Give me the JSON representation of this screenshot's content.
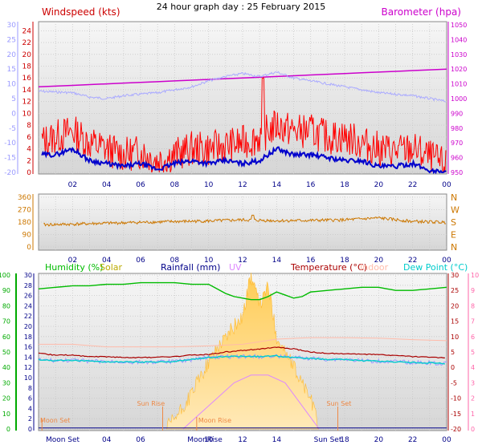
{
  "title": "24 hour graph day : 25 February 2015",
  "colors": {
    "wind_speed": "#cc0000",
    "wind_gust": "#ff0000",
    "wind_avg": "#0000cc",
    "barometer": "#cc00cc",
    "temperature": "#aaaaff",
    "direction": "#cc7700",
    "humidity": "#00bb00",
    "solar": "#bbaa00",
    "rainfall": "#000088",
    "uv": "#dd88ff",
    "temp_label": "#aa0000",
    "indoor": "#ffbbaa",
    "dew_point": "#00cccc",
    "pink_axis": "#ff66aa",
    "astro": "#ee8844",
    "hum_axis": "#00aa00"
  },
  "chart_data": [
    {
      "type": "line",
      "panel": "wind",
      "left_title": "Windspeed (kts)",
      "right_title": "Barometer (hpa)",
      "x_ticks": [
        "02",
        "04",
        "06",
        "08",
        "10",
        "12",
        "14",
        "16",
        "18",
        "20",
        "22",
        "00"
      ],
      "y_left_ticks": [
        "0",
        "2",
        "4",
        "6",
        "8",
        "10",
        "12",
        "14",
        "16",
        "18",
        "20",
        "22",
        "24"
      ],
      "y_far_left_ticks": [
        "-20",
        "-15",
        "-10",
        "-5",
        "0",
        "5",
        "10",
        "15",
        "20",
        "25",
        "30"
      ],
      "y_right_ticks": [
        "950",
        "960",
        "970",
        "980",
        "990",
        "1000",
        "1010",
        "1020",
        "1030",
        "1040",
        "1050"
      ],
      "ylim_left": [
        0,
        25
      ],
      "ylim_far_left": [
        -20,
        30
      ],
      "ylim_right": [
        950,
        1050
      ],
      "series": [
        {
          "x": [
            0,
            1,
            2,
            3,
            4,
            5,
            6,
            7,
            8,
            9,
            10,
            11,
            12,
            13,
            14,
            15,
            16,
            17,
            18,
            19,
            20,
            21,
            22,
            23,
            24
          ],
          "values": [
            1008,
            1008.5,
            1009,
            1009.5,
            1010,
            1010.5,
            1011,
            1011.5,
            1012,
            1012.5,
            1013,
            1013.5,
            1014,
            1014.5,
            1015,
            1015.5,
            1016,
            1016.5,
            1017,
            1017.5,
            1018,
            1018.5,
            1019,
            1019.5,
            1020
          ]
        },
        {
          "x": [
            0,
            2,
            3,
            4,
            5,
            6,
            7,
            8,
            9,
            10,
            11,
            12,
            13,
            14,
            15,
            16,
            17,
            18,
            19,
            20,
            21,
            22,
            23,
            24
          ],
          "values": [
            7.5,
            7,
            5.5,
            5,
            6,
            6.5,
            7,
            8,
            9,
            11,
            12.5,
            13.5,
            12.5,
            14,
            12,
            11,
            10,
            9,
            8,
            7,
            6.5,
            6,
            5,
            4
          ]
        },
        {
          "x": [
            0,
            1,
            2,
            3,
            4,
            5,
            6,
            7,
            8,
            9,
            10,
            11,
            12,
            13,
            14,
            15,
            16,
            17,
            18,
            19,
            20,
            21,
            22,
            23,
            24
          ],
          "values": [
            5,
            6,
            7,
            5,
            4,
            3,
            3.5,
            2,
            3,
            4,
            4,
            4.5,
            5,
            6,
            8,
            7,
            7,
            6,
            6,
            5,
            4,
            3.5,
            4,
            2.5,
            1
          ]
        },
        {
          "x": [
            0,
            1,
            2,
            3,
            4,
            5,
            6,
            7,
            8,
            9,
            10,
            11,
            12,
            13,
            14,
            15,
            16,
            17,
            18,
            19,
            20,
            21,
            22,
            23,
            24
          ],
          "values": [
            3,
            3,
            4,
            2,
            1.5,
            1,
            1.5,
            0.5,
            1.5,
            2,
            1.5,
            2,
            1.5,
            2,
            4,
            3,
            3,
            2.5,
            2,
            2,
            1,
            1,
            1.5,
            0.3,
            0
          ]
        }
      ]
    },
    {
      "type": "line",
      "panel": "direction",
      "x_ticks": [
        "02",
        "04",
        "06",
        "08",
        "10",
        "12",
        "14",
        "16",
        "18",
        "20",
        "22",
        "00"
      ],
      "y_left_ticks": [
        "0",
        "90",
        "180",
        "270",
        "360"
      ],
      "y_right_ticks": [
        "N",
        "W",
        "S",
        "E",
        "N"
      ],
      "ylim": [
        0,
        360
      ],
      "series": [
        {
          "x": [
            0,
            2,
            4,
            6,
            8,
            10,
            12,
            14,
            16,
            18,
            20,
            22,
            24
          ],
          "values": [
            160,
            165,
            172,
            178,
            184,
            188,
            196,
            190,
            192,
            196,
            210,
            185,
            178
          ]
        }
      ]
    },
    {
      "type": "line",
      "panel": "climate",
      "legend": [
        "Humidity (%)",
        "Solar",
        "Rainfall (mm)",
        "UV",
        "Temperature (°C)",
        "Indoor",
        "Dew Point (°C)"
      ],
      "x_ticks": [
        "02",
        "04",
        "06",
        "08",
        "10",
        "12",
        "14",
        "16",
        "18",
        "20",
        "22",
        "00"
      ],
      "astro_axis_labels": [
        "Moon Set",
        "MoonRise",
        "Sun Set"
      ],
      "astro_labels": [
        "Sun Rise",
        "Sun Set",
        "Moon Rise",
        "Moon Set"
      ],
      "y_hum_ticks": [
        "0",
        "10",
        "20",
        "30",
        "40",
        "50",
        "60",
        "70",
        "80",
        "90",
        "100"
      ],
      "y_rain_ticks": [
        "0",
        "2",
        "4",
        "6",
        "8",
        "10",
        "12",
        "14",
        "16",
        "18",
        "20",
        "22",
        "24",
        "26",
        "28",
        "30"
      ],
      "y_temp_ticks": [
        "-20",
        "-15",
        "-10",
        "-5",
        "0",
        "5",
        "10",
        "15",
        "20",
        "25",
        "30"
      ],
      "y_uv_ticks": [
        "0",
        "1",
        "2",
        "3",
        "4",
        "5",
        "6",
        "7",
        "8",
        "9",
        "10"
      ],
      "ylim_humidity": [
        0,
        100
      ],
      "ylim_temperature": [
        -20,
        30
      ],
      "series": [
        {
          "x": [
            0,
            1,
            2,
            3,
            4,
            5,
            6,
            7,
            8,
            9,
            10,
            11,
            11.5,
            12,
            12.5,
            13,
            13.5,
            14,
            14.5,
            15,
            15.5,
            16,
            17,
            18,
            19,
            20,
            21,
            22,
            23,
            24
          ],
          "values": [
            91,
            92,
            93,
            93,
            94,
            94,
            95,
            95,
            95,
            94,
            94,
            88,
            86,
            85,
            84,
            84,
            86,
            89,
            87,
            85,
            86,
            89,
            90,
            91,
            92,
            92,
            90,
            90,
            91,
            92
          ]
        },
        {
          "x": [
            0,
            2,
            4,
            6,
            8,
            10,
            12,
            14,
            16,
            18,
            20,
            22,
            24
          ],
          "values": [
            2.5,
            2.5,
            2,
            2,
            2,
            2.2,
            2.5,
            3.5,
            3.8,
            3.8,
            3.7,
            3.4,
            3.2
          ]
        },
        {
          "x": [
            0,
            1,
            2,
            3,
            4,
            5,
            6,
            7,
            8,
            9,
            10,
            11,
            12,
            13,
            14,
            15,
            16,
            17,
            18,
            19,
            20,
            21,
            22,
            23,
            24
          ],
          "values": [
            4.5,
            4,
            4,
            3.5,
            3.5,
            3.2,
            3.2,
            3.3,
            3.5,
            4,
            4.2,
            5,
            5.5,
            6,
            6.5,
            6,
            5,
            4.5,
            4.5,
            4.2,
            4.2,
            3.8,
            3.5,
            3.3,
            3
          ]
        },
        {
          "x": [
            0,
            1,
            2,
            3,
            4,
            5,
            6,
            7,
            8,
            9,
            10,
            11,
            12,
            13,
            14,
            15,
            16,
            17,
            18,
            19,
            20,
            21,
            22,
            23,
            24
          ],
          "values": [
            2.5,
            2.2,
            2.3,
            2,
            1.8,
            1.8,
            1.7,
            1.8,
            1.9,
            2.5,
            3.2,
            3.5,
            3.6,
            3.5,
            3.7,
            3.2,
            2.9,
            2.6,
            2.6,
            2.2,
            2,
            1.8,
            1.6,
            1.5,
            1.2
          ]
        },
        {
          "x": [
            0,
            2,
            4,
            6,
            8,
            10,
            12,
            14,
            16,
            18,
            20,
            22,
            24
          ],
          "values": [
            2,
            2,
            1.5,
            1.5,
            1.5,
            2,
            2.5,
            3.5,
            3,
            2.5,
            2,
            1.5,
            1
          ]
        },
        {
          "x": [
            7.5,
            8.5,
            9.5,
            10.5,
            11.5,
            12,
            12.5,
            13,
            13.5,
            14,
            15,
            16,
            16.5
          ],
          "values": [
            0,
            4,
            10,
            16,
            20,
            22,
            30,
            24,
            28,
            18,
            12,
            6,
            0
          ]
        },
        {
          "x": [
            8.5,
            9.5,
            10.5,
            11.5,
            12.5,
            13.5,
            14.5,
            15.5,
            16.5
          ],
          "values": [
            0,
            1,
            2,
            3,
            3.5,
            3.5,
            3,
            1.5,
            0
          ]
        }
      ]
    }
  ]
}
